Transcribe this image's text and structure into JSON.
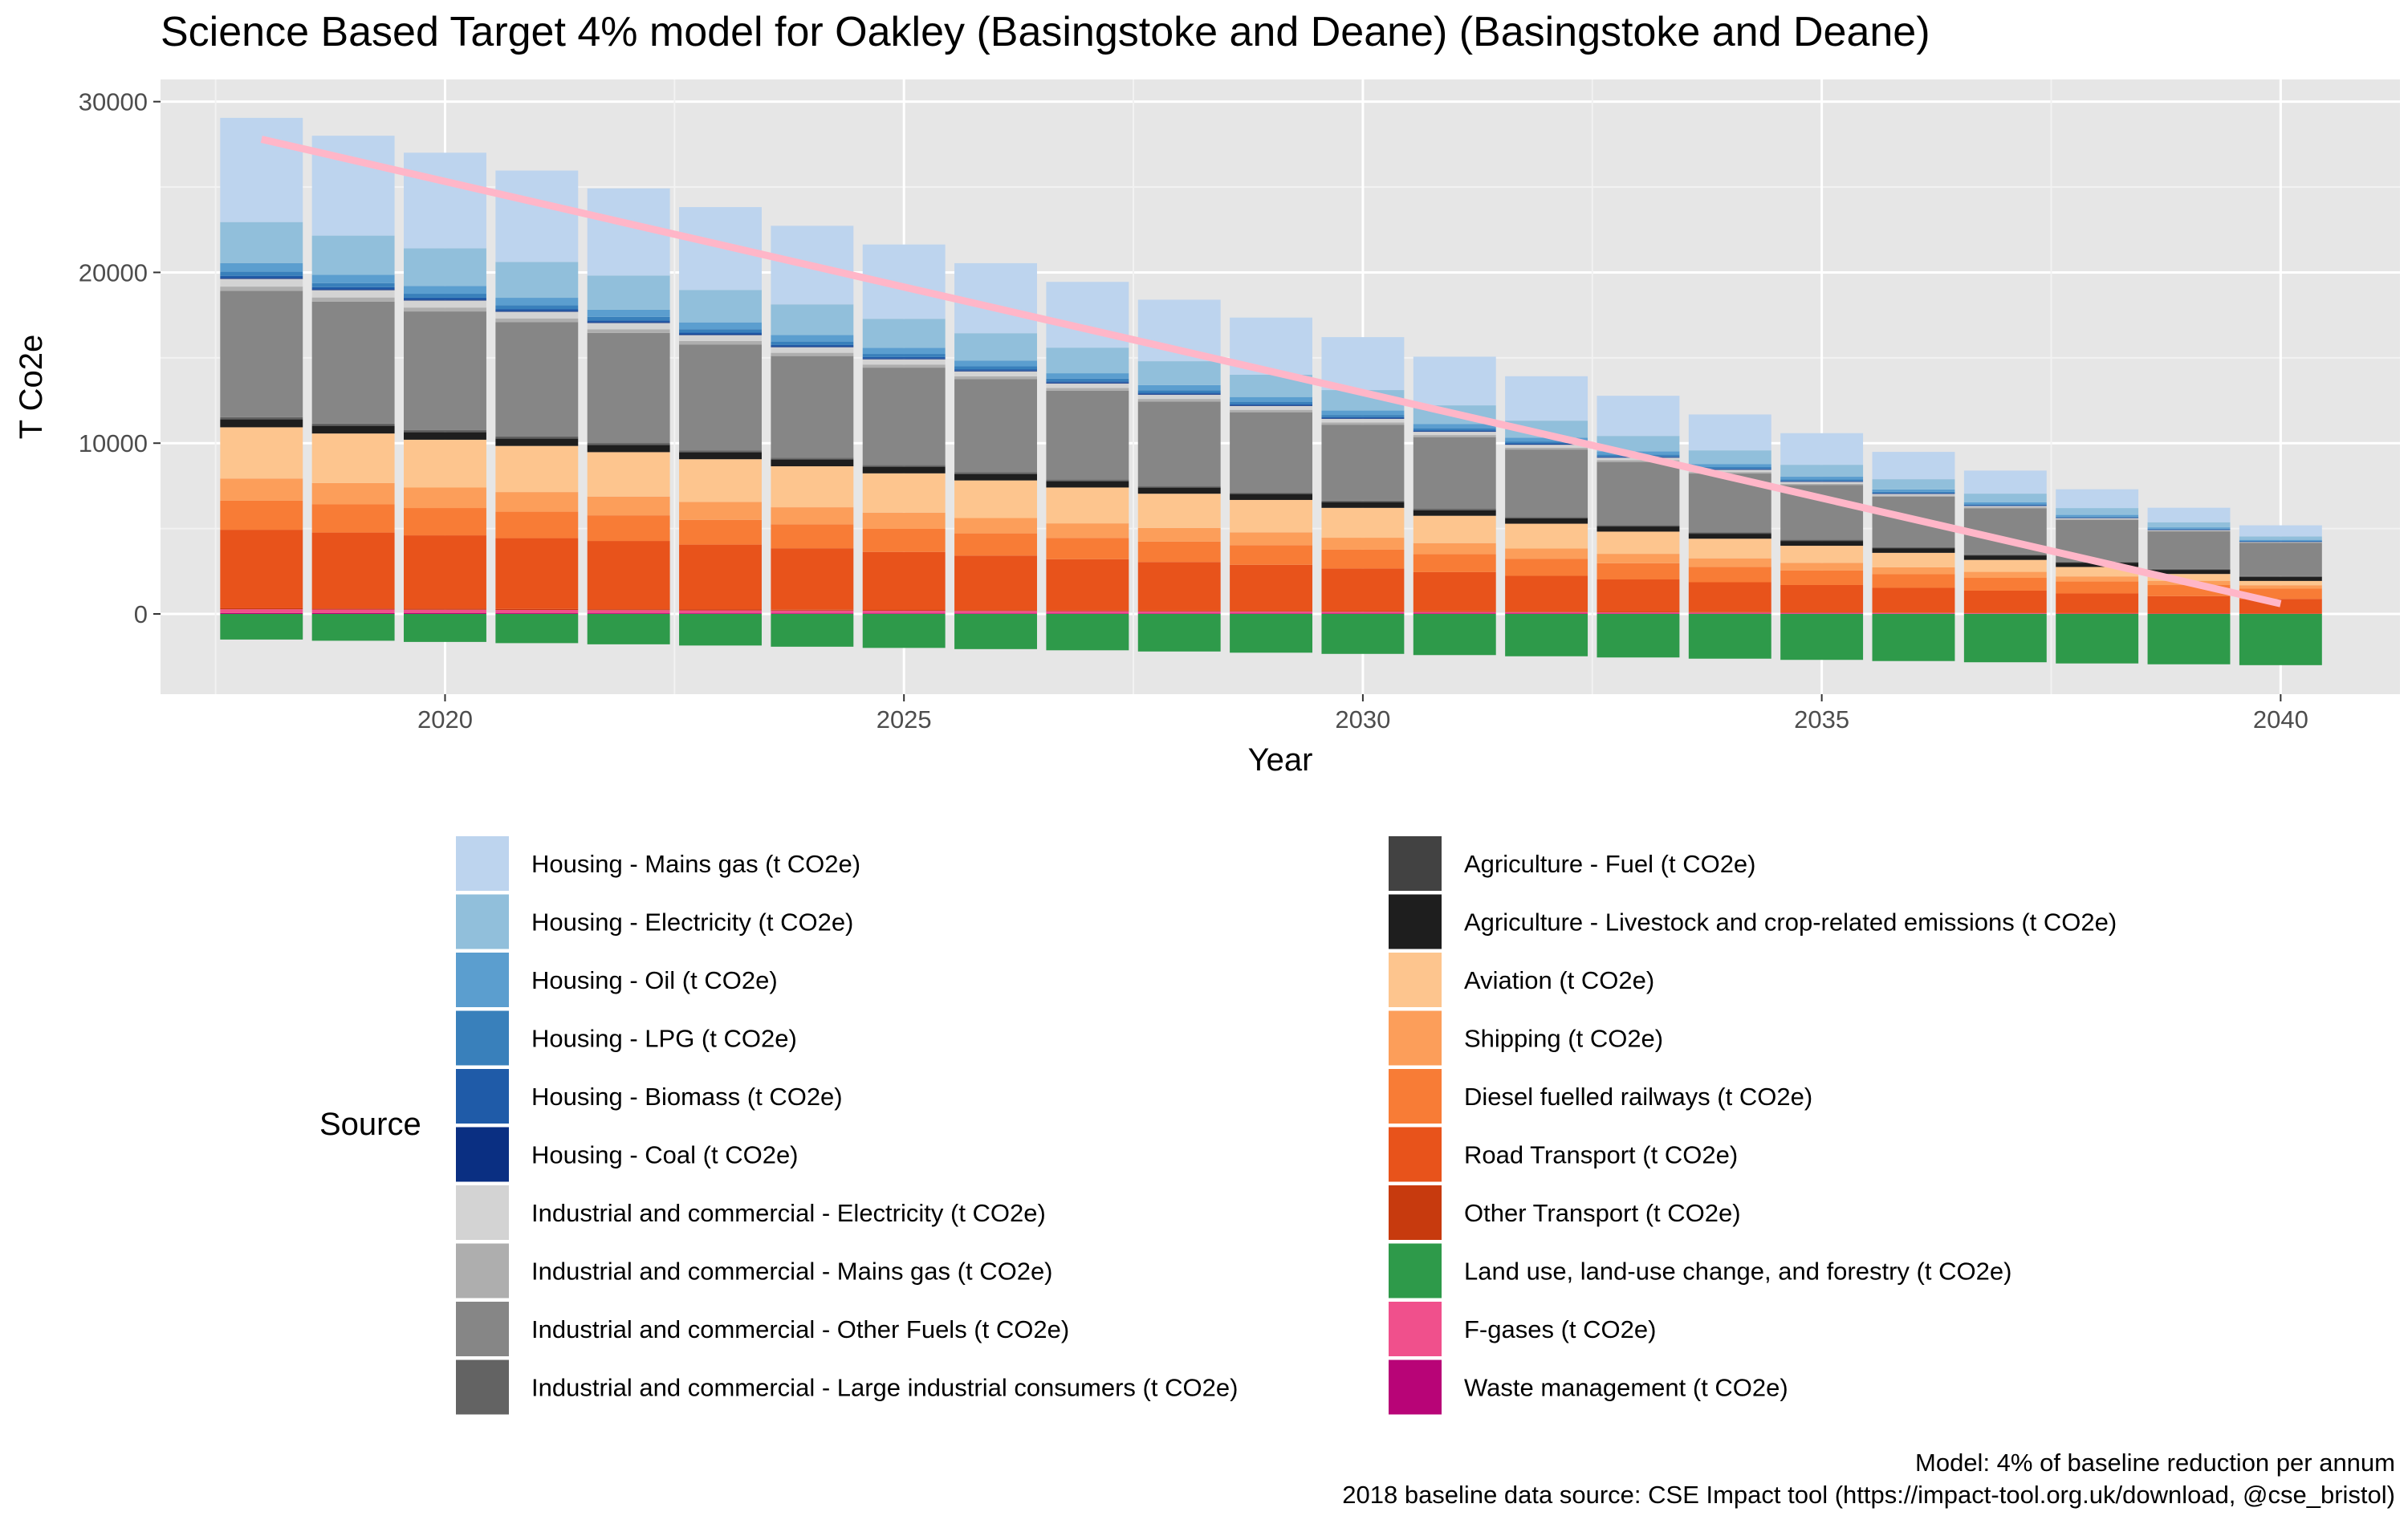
{
  "chart_data": {
    "type": "bar",
    "stacked": true,
    "title": "Science Based Target 4% model for Oakley (Basingstoke and Deane) (Basingstoke and Deane)",
    "xlabel": "Year",
    "ylabel": "T Co2e",
    "x": [
      2018,
      2019,
      2020,
      2021,
      2022,
      2023,
      2024,
      2025,
      2026,
      2027,
      2028,
      2029,
      2030,
      2031,
      2032,
      2033,
      2034,
      2035,
      2036,
      2037,
      2038,
      2039,
      2040
    ],
    "xlim": [
      2016.9,
      2041.3
    ],
    "ylim": [
      -4700,
      31300
    ],
    "x_ticks": [
      2020,
      2025,
      2030,
      2035,
      2040
    ],
    "y_ticks": [
      0,
      10000,
      20000,
      30000
    ],
    "grid": true,
    "legend_title": "Source",
    "legend_position": "bottom",
    "series": [
      {
        "name": "Housing - Mains gas (t CO2e)",
        "color": "#BDD4EE",
        "values": [
          6100,
          5850,
          5600,
          5350,
          5100,
          4850,
          4600,
          4350,
          4100,
          3850,
          3600,
          3350,
          3100,
          2850,
          2600,
          2350,
          2100,
          1850,
          1600,
          1350,
          1100,
          850,
          650
        ]
      },
      {
        "name": "Housing - Electricity (t CO2e)",
        "color": "#91BFDB",
        "values": [
          2400,
          2300,
          2200,
          2100,
          2000,
          1900,
          1800,
          1700,
          1600,
          1500,
          1400,
          1300,
          1200,
          1100,
          1000,
          900,
          800,
          700,
          600,
          500,
          400,
          300,
          200
        ]
      },
      {
        "name": "Housing - Oil (t CO2e)",
        "color": "#5B9ECF",
        "values": [
          500,
          480,
          460,
          440,
          420,
          400,
          380,
          360,
          340,
          320,
          300,
          280,
          260,
          240,
          220,
          200,
          180,
          160,
          140,
          120,
          100,
          80,
          60
        ]
      },
      {
        "name": "Housing - LPG (t CO2e)",
        "color": "#3980BB",
        "values": [
          250,
          240,
          230,
          220,
          210,
          200,
          190,
          180,
          170,
          160,
          150,
          140,
          130,
          120,
          110,
          100,
          90,
          80,
          70,
          60,
          50,
          40,
          30
        ]
      },
      {
        "name": "Housing - Biomass (t CO2e)",
        "color": "#1F5BA8",
        "values": [
          120,
          115,
          110,
          105,
          100,
          95,
          90,
          85,
          80,
          75,
          70,
          65,
          60,
          55,
          50,
          45,
          40,
          35,
          30,
          25,
          20,
          15,
          10
        ]
      },
      {
        "name": "Housing - Coal (t CO2e)",
        "color": "#0A2F82",
        "values": [
          60,
          58,
          56,
          54,
          52,
          50,
          48,
          46,
          44,
          42,
          40,
          38,
          36,
          34,
          32,
          30,
          28,
          26,
          24,
          22,
          20,
          18,
          16
        ]
      },
      {
        "name": "Industrial and commercial - Electricity (t CO2e)",
        "color": "#D3D3D3",
        "values": [
          450,
          430,
          410,
          390,
          370,
          350,
          330,
          310,
          290,
          270,
          250,
          230,
          210,
          190,
          170,
          150,
          130,
          110,
          90,
          70,
          50,
          40,
          30
        ]
      },
      {
        "name": "Industrial and commercial - Mains gas (t CO2e)",
        "color": "#AEAEAE",
        "values": [
          250,
          240,
          230,
          220,
          210,
          200,
          190,
          180,
          170,
          160,
          150,
          140,
          130,
          120,
          110,
          100,
          90,
          80,
          70,
          60,
          50,
          40,
          30
        ]
      },
      {
        "name": "Industrial and commercial - Other Fuels (t CO2e)",
        "color": "#868686",
        "values": [
          7400,
          7150,
          6950,
          6700,
          6450,
          6200,
          5950,
          5700,
          5450,
          5200,
          4950,
          4700,
          4450,
          4200,
          3950,
          3700,
          3450,
          3200,
          2950,
          2700,
          2450,
          2200,
          1950
        ]
      },
      {
        "name": "Industrial and commercial - Large industrial consumers (t CO2e)",
        "color": "#636363",
        "values": [
          80,
          78,
          76,
          74,
          72,
          70,
          68,
          66,
          64,
          62,
          60,
          58,
          56,
          54,
          52,
          50,
          48,
          46,
          44,
          42,
          40,
          38,
          36
        ]
      },
      {
        "name": "Agriculture - Fuel (t CO2e)",
        "color": "#424242",
        "values": [
          60,
          58,
          56,
          54,
          52,
          50,
          48,
          46,
          44,
          42,
          40,
          38,
          36,
          34,
          32,
          30,
          28,
          26,
          24,
          22,
          20,
          18,
          16
        ]
      },
      {
        "name": "Agriculture - Livestock and crop-related emissions (t CO2e)",
        "color": "#1E1E1E",
        "values": [
          450,
          440,
          430,
          420,
          410,
          400,
          390,
          380,
          370,
          360,
          350,
          340,
          330,
          320,
          310,
          300,
          290,
          280,
          270,
          260,
          250,
          240,
          230
        ]
      },
      {
        "name": "Aviation (t CO2e)",
        "color": "#FDC58E",
        "values": [
          3000,
          2900,
          2800,
          2700,
          2600,
          2500,
          2400,
          2300,
          2200,
          2100,
          2000,
          1900,
          1750,
          1600,
          1450,
          1300,
          1150,
          1000,
          850,
          700,
          550,
          400,
          250
        ]
      },
      {
        "name": "Shipping (t CO2e)",
        "color": "#FC9E5A",
        "values": [
          1300,
          1250,
          1200,
          1150,
          1100,
          1050,
          1000,
          950,
          900,
          850,
          800,
          750,
          700,
          650,
          600,
          550,
          500,
          450,
          400,
          350,
          300,
          250,
          200
        ]
      },
      {
        "name": "Diesel fuelled railways (t CO2e)",
        "color": "#F87C36",
        "values": [
          1700,
          1650,
          1600,
          1550,
          1500,
          1450,
          1400,
          1350,
          1300,
          1250,
          1200,
          1150,
          1100,
          1050,
          1000,
          950,
          900,
          850,
          800,
          750,
          700,
          650,
          600
        ]
      },
      {
        "name": "Road Transport (t CO2e)",
        "color": "#E8531B",
        "values": [
          4600,
          4450,
          4300,
          4150,
          4000,
          3800,
          3600,
          3400,
          3200,
          3000,
          2850,
          2700,
          2500,
          2300,
          2100,
          1900,
          1750,
          1600,
          1450,
          1300,
          1150,
          1000,
          850
        ]
      },
      {
        "name": "Other Transport (t CO2e)",
        "color": "#C73A0E",
        "values": [
          60,
          58,
          56,
          54,
          52,
          50,
          48,
          46,
          44,
          42,
          40,
          38,
          36,
          34,
          32,
          30,
          28,
          26,
          24,
          22,
          20,
          18,
          16
        ]
      },
      {
        "name": "Land use, land-use change, and forestry (t CO2e)",
        "color": "#2E9A4A",
        "values": [
          -1500,
          -1570,
          -1640,
          -1710,
          -1780,
          -1850,
          -1920,
          -1990,
          -2060,
          -2130,
          -2200,
          -2270,
          -2340,
          -2410,
          -2480,
          -2550,
          -2620,
          -2690,
          -2760,
          -2830,
          -2900,
          -2950,
          -3000
        ]
      },
      {
        "name": "F-gases (t CO2e)",
        "color": "#F0508C",
        "values": [
          220,
          210,
          200,
          190,
          180,
          170,
          160,
          150,
          140,
          130,
          120,
          110,
          100,
          90,
          80,
          70,
          60,
          50,
          40,
          30,
          20,
          15,
          10
        ]
      },
      {
        "name": "Waste management (t CO2e)",
        "color": "#B80477",
        "values": [
          50,
          48,
          46,
          44,
          42,
          40,
          38,
          36,
          34,
          32,
          30,
          28,
          26,
          24,
          22,
          20,
          18,
          16,
          14,
          12,
          10,
          8,
          6
        ]
      }
    ],
    "target_line": {
      "color": "#FFB6C8",
      "x": [
        2018,
        2040
      ],
      "y": [
        27800,
        600
      ]
    },
    "caption": [
      "Model: 4% of baseline reduction per annum",
      "2018 baseline data source: CSE Impact tool (https://impact-tool.org.uk/download, @cse_bristol)"
    ]
  }
}
